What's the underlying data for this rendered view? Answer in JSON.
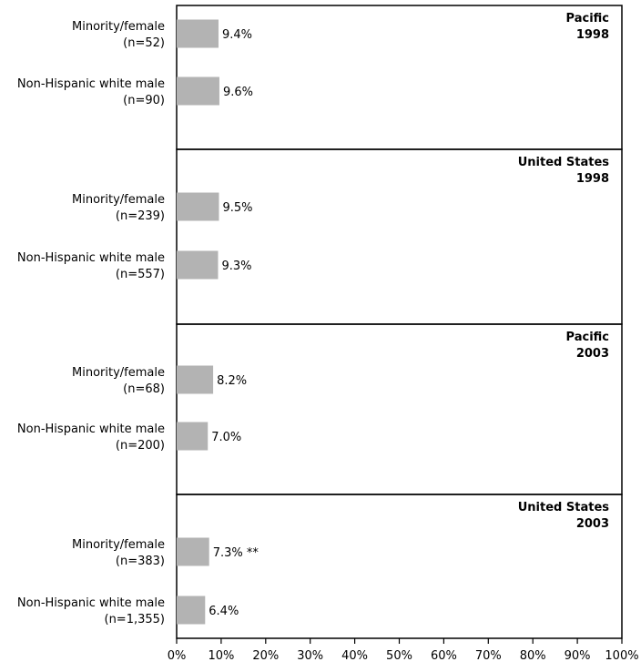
{
  "chart_data": {
    "type": "bar",
    "orientation": "horizontal",
    "xlim": [
      0,
      100
    ],
    "x_ticks": [
      "0%",
      "10%",
      "20%",
      "30%",
      "40%",
      "50%",
      "60%",
      "70%",
      "80%",
      "90%",
      "100%"
    ],
    "grid": false,
    "bar_color": "#b3b3b3",
    "panels": [
      {
        "title_line1": "Pacific",
        "title_line2": "1998",
        "bars": [
          {
            "label_line1": "Minority/female",
            "label_line2": "(n=52)",
            "value": 9.4,
            "value_label": "9.4%"
          },
          {
            "label_line1": "Non-Hispanic white male",
            "label_line2": "(n=90)",
            "value": 9.6,
            "value_label": "9.6%"
          }
        ]
      },
      {
        "title_line1": "United States",
        "title_line2": "1998",
        "bars": [
          {
            "label_line1": "Minority/female",
            "label_line2": "(n=239)",
            "value": 9.5,
            "value_label": "9.5%"
          },
          {
            "label_line1": "Non-Hispanic white male",
            "label_line2": "(n=557)",
            "value": 9.3,
            "value_label": "9.3%"
          }
        ]
      },
      {
        "title_line1": "Pacific",
        "title_line2": "2003",
        "bars": [
          {
            "label_line1": "Minority/female",
            "label_line2": "(n=68)",
            "value": 8.2,
            "value_label": "8.2%"
          },
          {
            "label_line1": "Non-Hispanic white male",
            "label_line2": "(n=200)",
            "value": 7.0,
            "value_label": "7.0%"
          }
        ]
      },
      {
        "title_line1": "United States",
        "title_line2": "2003",
        "bars": [
          {
            "label_line1": "Minority/female",
            "label_line2": "(n=383)",
            "value": 7.3,
            "value_label": "7.3% **"
          },
          {
            "label_line1": "Non-Hispanic white male",
            "label_line2": "(n=1,355)",
            "value": 6.4,
            "value_label": "6.4%"
          }
        ]
      }
    ]
  }
}
